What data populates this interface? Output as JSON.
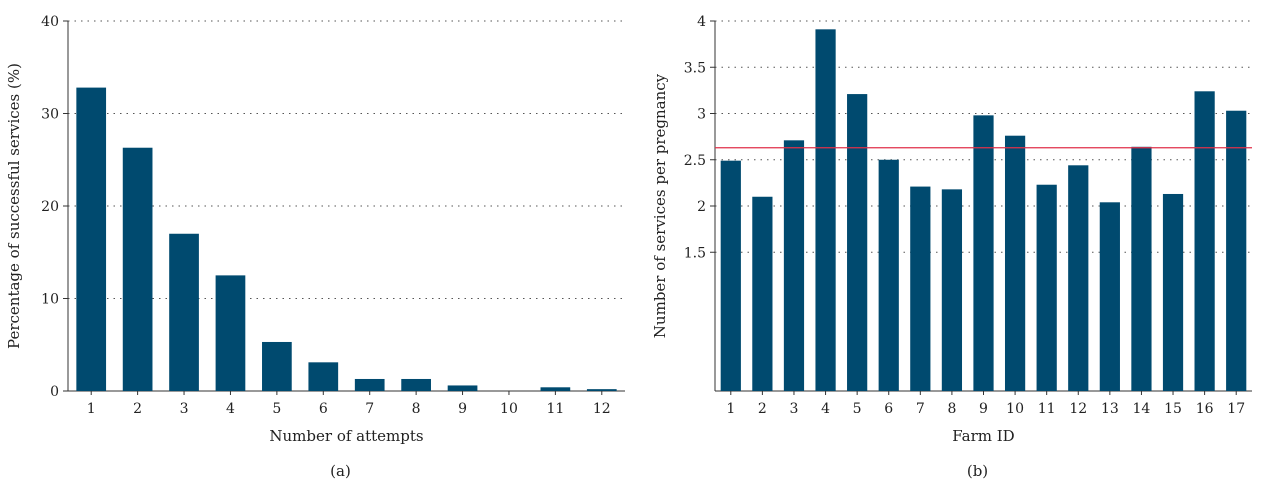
{
  "chart_data": [
    {
      "type": "bar",
      "panel_label": "(a)",
      "xlabel": "Number of attempts",
      "ylabel": "Percentage of successful services (%)",
      "categories": [
        "1",
        "2",
        "3",
        "4",
        "5",
        "6",
        "7",
        "8",
        "9",
        "10",
        "11",
        "12"
      ],
      "values": [
        32.8,
        26.3,
        17.0,
        12.5,
        5.3,
        3.1,
        1.3,
        1.3,
        0.6,
        0.0,
        0.4,
        0.2
      ],
      "ylim": [
        0,
        40
      ],
      "yticks": [
        0,
        10,
        20,
        30,
        40
      ],
      "grid": "horizontal dotted",
      "bar_color": "#004a6f"
    },
    {
      "type": "bar",
      "panel_label": "(b)",
      "xlabel": "Farm ID",
      "ylabel": "Number of services per pregnancy",
      "categories": [
        "1",
        "2",
        "3",
        "4",
        "5",
        "6",
        "7",
        "8",
        "9",
        "10",
        "11",
        "12",
        "13",
        "14",
        "15",
        "16",
        "17"
      ],
      "values": [
        2.49,
        2.1,
        2.71,
        3.91,
        3.21,
        2.5,
        2.21,
        2.18,
        2.98,
        2.76,
        2.23,
        2.44,
        2.04,
        2.64,
        2.13,
        3.24,
        3.03
      ],
      "ylim": [
        0,
        4
      ],
      "yticks": [
        1.5,
        2,
        2.5,
        3,
        3.5,
        4
      ],
      "ytick_labels": [
        "1.5",
        "2",
        "2.5",
        "3",
        "3.5",
        "4"
      ],
      "reference_line": 2.63,
      "reference_line_color": "#e0314a",
      "grid": "horizontal dotted",
      "bar_color": "#004a6f"
    }
  ]
}
